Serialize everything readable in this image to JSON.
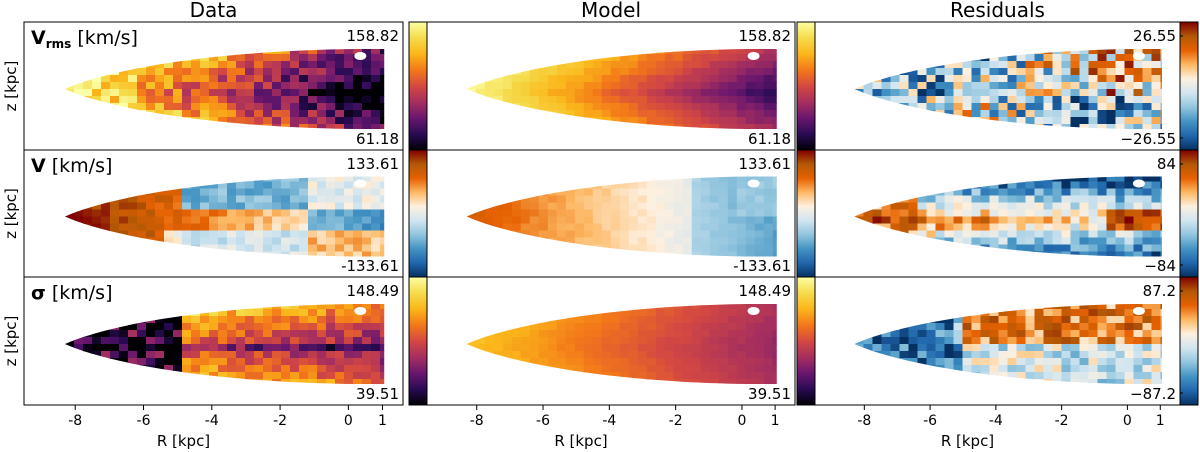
{
  "chart_data": {
    "type": "heatmap",
    "columns": [
      "Data",
      "Model",
      "Residuals"
    ],
    "xlabel": "R [kpc]",
    "ylabel": "z [kpc]",
    "xticks": [
      "-8",
      "-6",
      "-4",
      "-2",
      "0",
      "1"
    ],
    "xlim": [
      -9.5,
      1.6
    ],
    "rows": [
      {
        "quantity_main": "V",
        "quantity_sub": "rms",
        "unit": " [km/s]",
        "data_range": {
          "max_label": "158.82",
          "min_label": "61.18"
        },
        "model_range": {
          "max_label": "158.82",
          "min_label": "61.18"
        },
        "residual_range": {
          "max_label": "26.55",
          "min_label": "−26.55"
        }
      },
      {
        "quantity_main": "V",
        "quantity_sub": "",
        "unit": " [km/s]",
        "data_range": {
          "max_label": "133.61",
          "min_label": "-133.61"
        },
        "model_range": {
          "max_label": "133.61",
          "min_label": "-133.61"
        },
        "residual_range": {
          "max_label": "84",
          "min_label": "−84"
        }
      },
      {
        "quantity_main": "σ",
        "quantity_sub": "",
        "unit": " [km/s]",
        "data_range": {
          "max_label": "148.49",
          "min_label": "39.51"
        },
        "model_range": {
          "max_label": "148.49",
          "min_label": "39.51"
        },
        "residual_range": {
          "max_label": "87.2",
          "min_label": "−87.2"
        }
      }
    ],
    "colormaps": {
      "sequential": [
        "#000004",
        "#2a0b55",
        "#6a176e",
        "#a62f5e",
        "#d44842",
        "#f37819",
        "#fbb61a",
        "#f5db4b",
        "#fcffa4"
      ],
      "diverging": [
        "#053061",
        "#2166ac",
        "#4393c3",
        "#92c5de",
        "#d1e5f0",
        "#fdf0e0",
        "#fdb863",
        "#e66101",
        "#b35806",
        "#7f0000"
      ]
    }
  }
}
